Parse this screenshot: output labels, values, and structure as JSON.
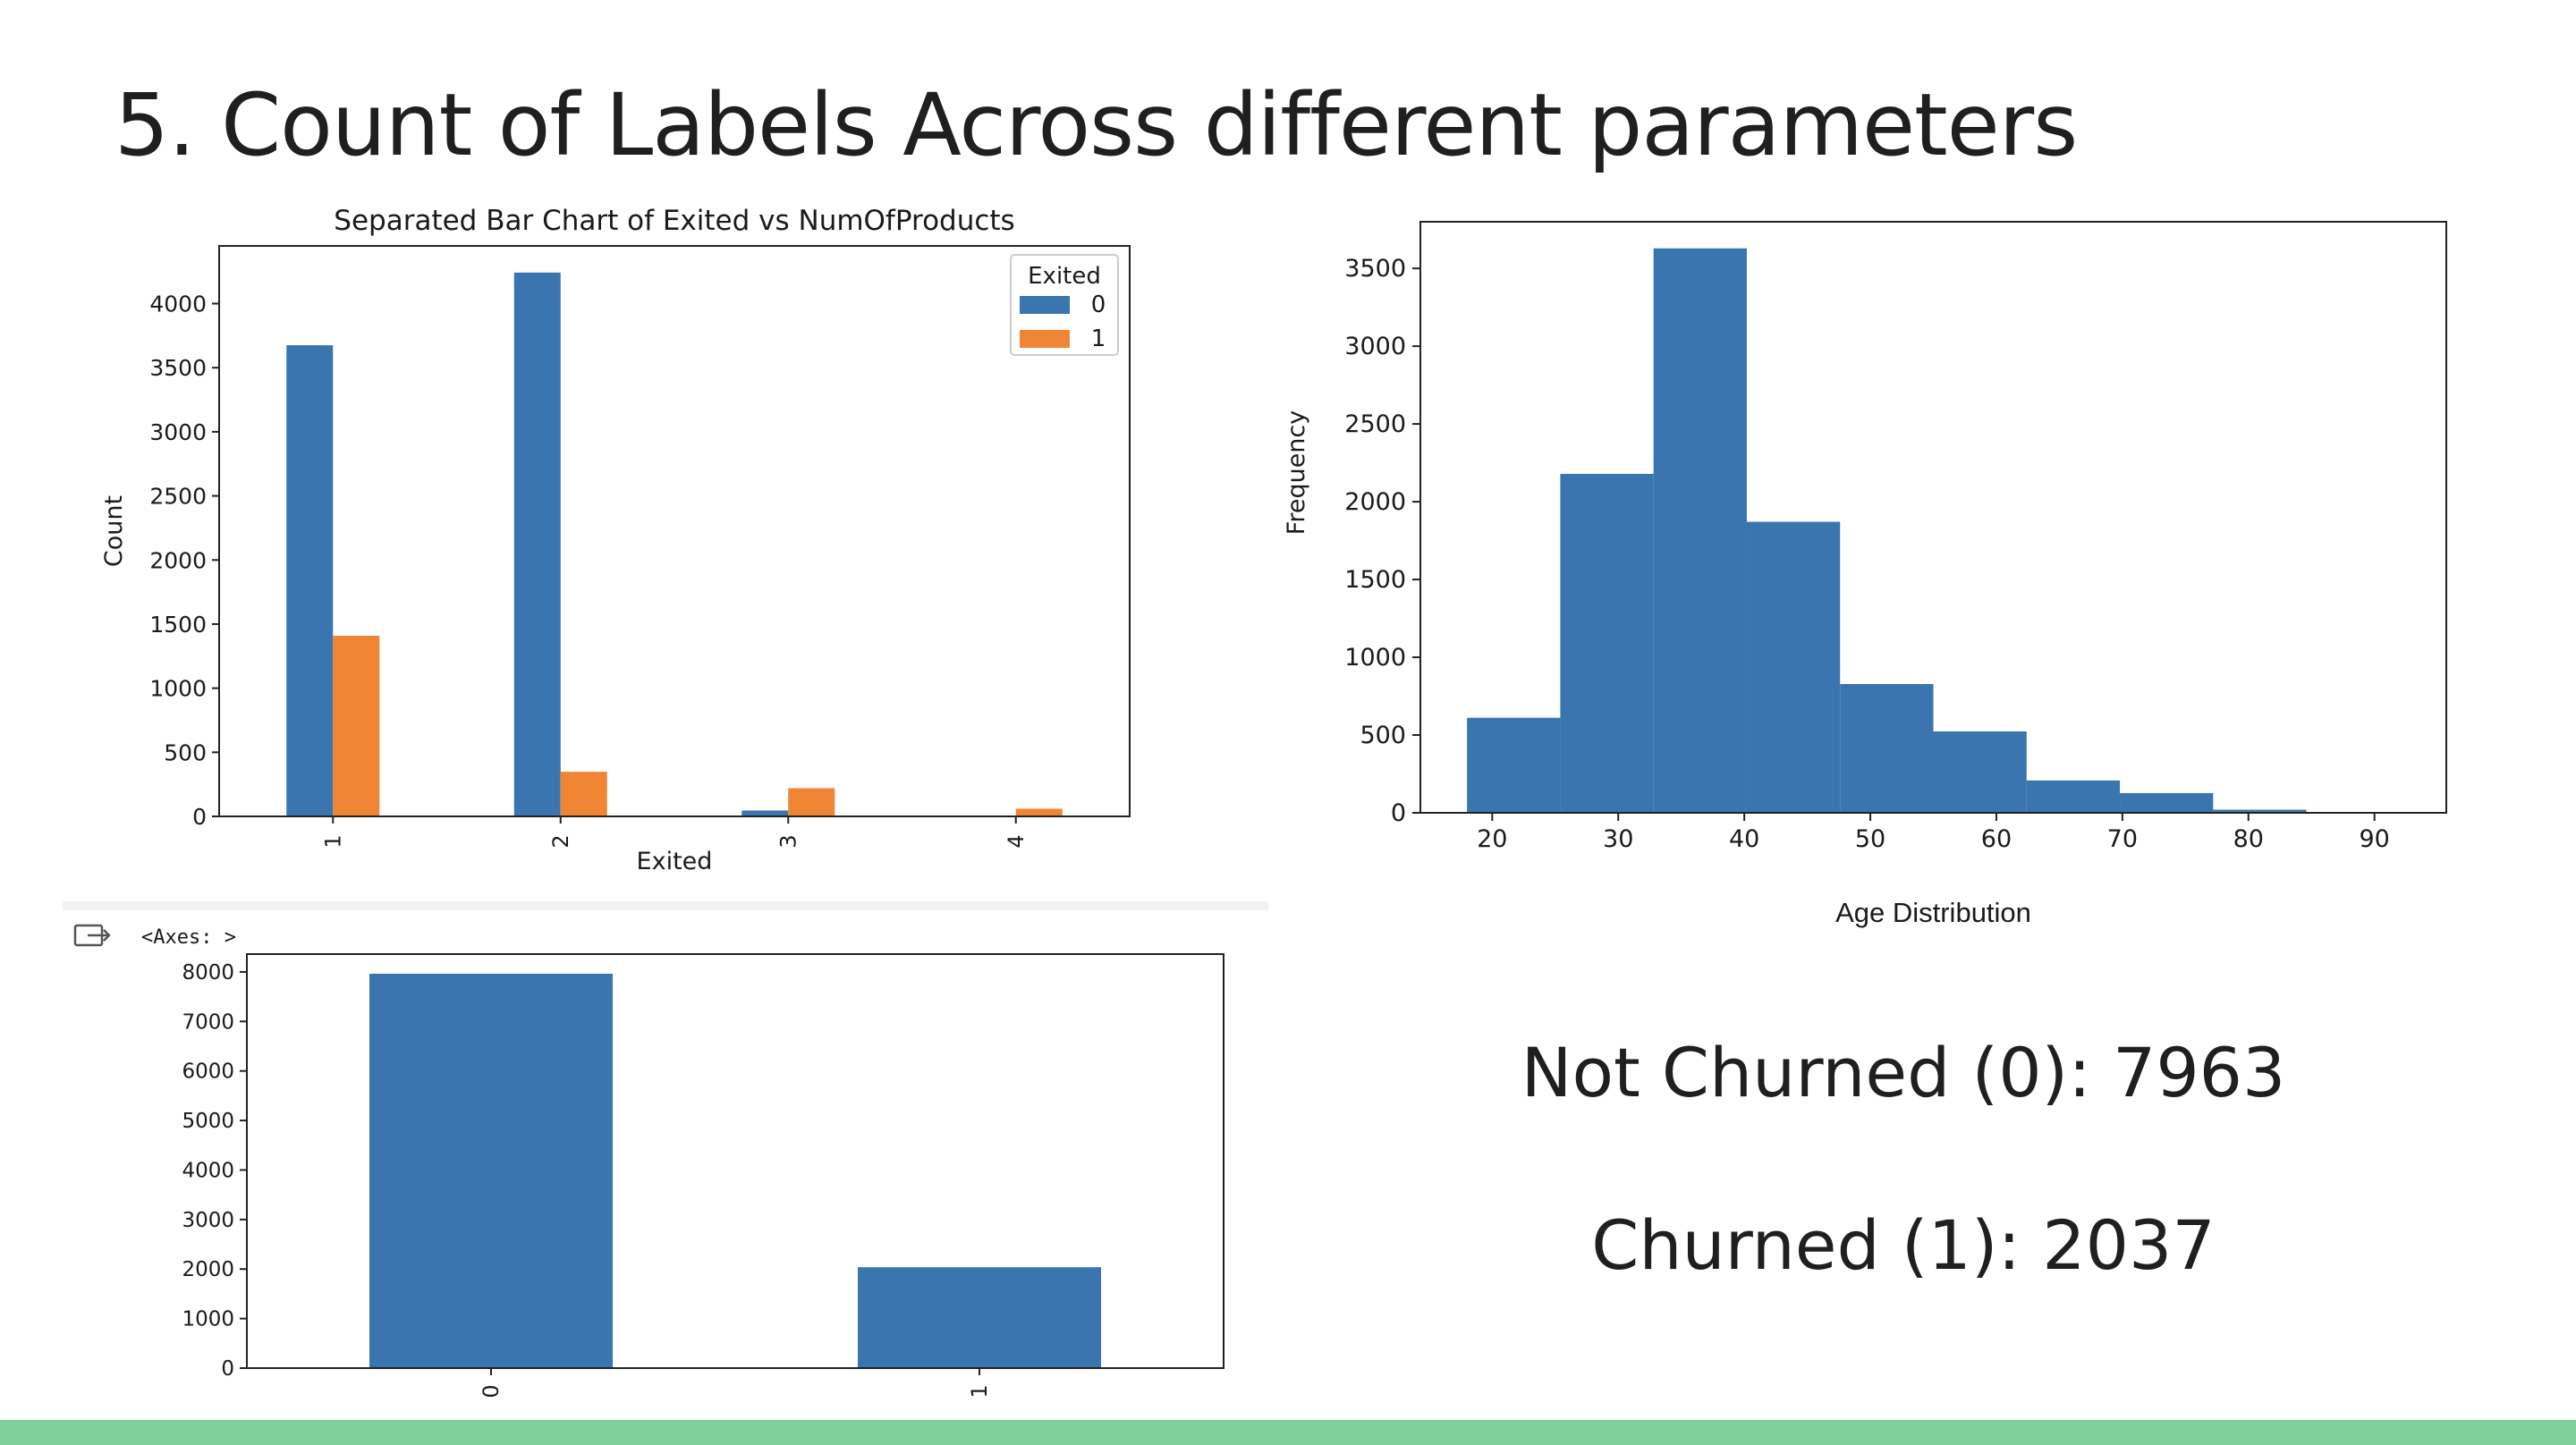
{
  "slide": {
    "title": "5. Count of Labels Across different parameters",
    "not_churned_label": "Not Churned (0):  7963",
    "churned_label": "Churned (1): 2037"
  },
  "colors": {
    "blue": "#3a75af",
    "orange": "#ef8535",
    "accent_bar": "#7fcf9a"
  },
  "chart_data": [
    {
      "type": "bar",
      "title": "Separated Bar Chart of Exited vs NumOfProducts",
      "xlabel": "Exited",
      "ylabel": "Count",
      "categories": [
        "1",
        "2",
        "3",
        "4"
      ],
      "series": [
        {
          "name": "0",
          "values": [
            3675,
            4242,
            46,
            0
          ]
        },
        {
          "name": "1",
          "values": [
            1409,
            348,
            220,
            60
          ]
        }
      ],
      "legend_title": "Exited",
      "legend_position": "top-right",
      "ylim": [
        0,
        4450
      ],
      "yticks": [
        0,
        500,
        1000,
        1500,
        2000,
        2500,
        3000,
        3500,
        4000
      ]
    },
    {
      "type": "bar",
      "subtype": "histogram",
      "xlabel": "Age Distribution",
      "ylabel": "Frequency",
      "bins": [
        [
          18,
          25.4
        ],
        [
          25.4,
          32.8
        ],
        [
          32.8,
          40.2
        ],
        [
          40.2,
          47.6
        ],
        [
          47.6,
          55
        ],
        [
          55,
          62.4
        ],
        [
          62.4,
          69.8
        ],
        [
          69.8,
          77.2
        ],
        [
          77.2,
          84.6
        ],
        [
          84.6,
          92
        ]
      ],
      "values": [
        611,
        2179,
        3629,
        1871,
        828,
        523,
        208,
        127,
        20,
        4
      ],
      "xlim": [
        14.3,
        95.7
      ],
      "ylim": [
        0,
        3800
      ],
      "xticks": [
        20,
        30,
        40,
        50,
        60,
        70,
        80,
        90
      ],
      "yticks": [
        0,
        500,
        1000,
        1500,
        2000,
        2500,
        3000,
        3500
      ]
    },
    {
      "type": "bar",
      "header_text": "<Axes: >",
      "header_icon": "output-arrow-icon",
      "categories": [
        "0",
        "1"
      ],
      "values": [
        7963,
        2037
      ],
      "ylim": [
        0,
        8360
      ],
      "yticks": [
        0,
        1000,
        2000,
        3000,
        4000,
        5000,
        6000,
        7000,
        8000
      ]
    }
  ]
}
